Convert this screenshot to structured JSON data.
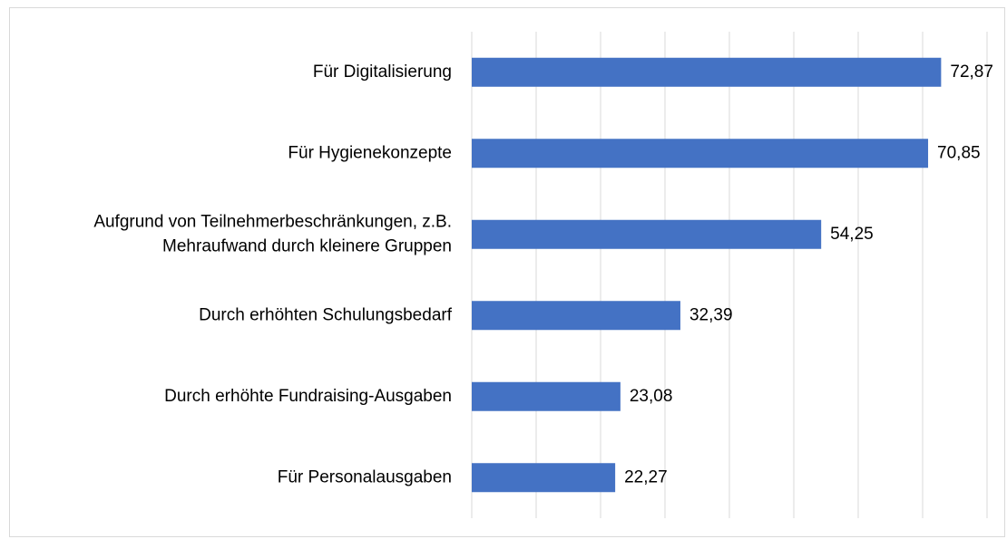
{
  "chart_data": {
    "type": "bar",
    "orientation": "horizontal",
    "categories": [
      "Für Digitalisierung",
      "Für Hygienekonzepte",
      "Aufgrund von Teilnehmerbeschränkungen, z.B.\nMehraufwand durch kleinere Gruppen",
      "Durch erhöhten Schulungsbedarf",
      "Durch erhöhte Fundraising-Ausgaben",
      "Für Personalausgaben"
    ],
    "values": [
      72.87,
      70.85,
      54.25,
      32.39,
      23.08,
      22.27
    ],
    "value_labels": [
      "72,87",
      "70,85",
      "54,25",
      "32,39",
      "23,08",
      "22,27"
    ],
    "color": "#4472c4",
    "xlim": [
      0,
      80
    ],
    "xticks": [
      0,
      10,
      20,
      30,
      40,
      50,
      60,
      70,
      80
    ],
    "grid": true
  }
}
